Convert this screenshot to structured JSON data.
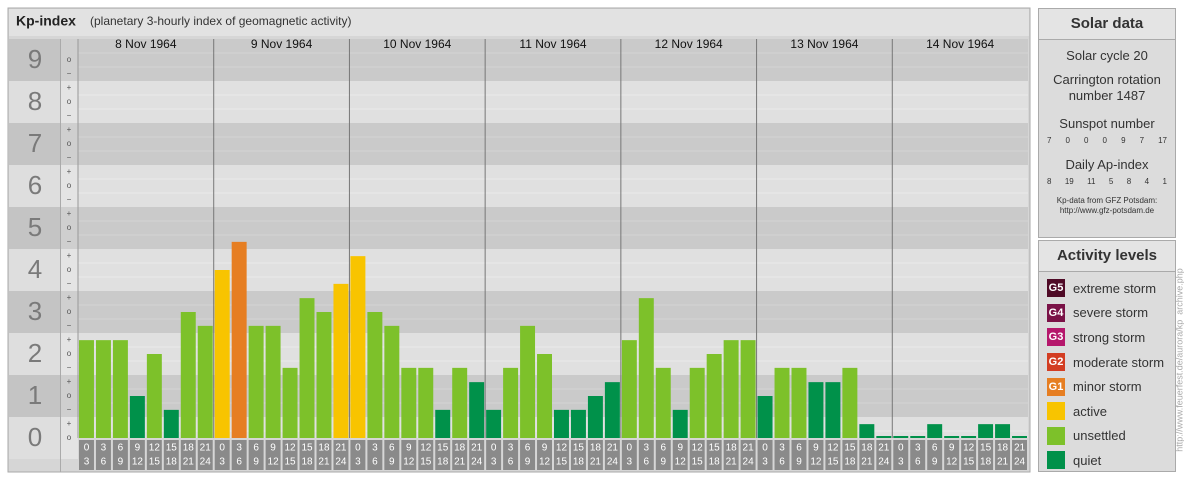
{
  "chart_data": {
    "type": "bar",
    "title": "Kp-index",
    "subtitle": "(planetary 3-hourly index of geomagnetic activity)",
    "ylim": [
      -0.5,
      9.5
    ],
    "yticks": [
      0,
      1,
      2,
      3,
      4,
      5,
      6,
      7,
      8,
      9
    ],
    "sublevels": [
      "−",
      "o",
      "+"
    ],
    "grid": true,
    "hours": [
      [
        0,
        3
      ],
      [
        3,
        6
      ],
      [
        6,
        9
      ],
      [
        9,
        12
      ],
      [
        12,
        15
      ],
      [
        15,
        18
      ],
      [
        18,
        21
      ],
      [
        21,
        24
      ]
    ],
    "days": [
      {
        "label": "8 Nov 1964",
        "values": [
          2.33,
          2.33,
          2.33,
          1,
          2,
          0.67,
          3,
          2.67
        ],
        "colors": [
          "#7dc12a",
          "#7dc12a",
          "#7dc12a",
          "#00914a",
          "#7dc12a",
          "#00914a",
          "#7dc12a",
          "#7dc12a"
        ]
      },
      {
        "label": "9 Nov 1964",
        "values": [
          4,
          4.67,
          2.67,
          2.67,
          1.67,
          3.33,
          3,
          3.67
        ],
        "colors": [
          "#f8c400",
          "#e67e22",
          "#7dc12a",
          "#7dc12a",
          "#7dc12a",
          "#7dc12a",
          "#7dc12a",
          "#f8c400"
        ]
      },
      {
        "label": "10 Nov 1964",
        "values": [
          4.33,
          3,
          2.67,
          1.67,
          1.67,
          0.67,
          1.67,
          1.33
        ],
        "colors": [
          "#f8c400",
          "#7dc12a",
          "#7dc12a",
          "#7dc12a",
          "#7dc12a",
          "#00914a",
          "#7dc12a",
          "#00914a"
        ]
      },
      {
        "label": "11 Nov 1964",
        "values": [
          0.67,
          1.67,
          2.67,
          2,
          0.67,
          0.67,
          1,
          1.33
        ],
        "colors": [
          "#00914a",
          "#7dc12a",
          "#7dc12a",
          "#7dc12a",
          "#00914a",
          "#00914a",
          "#00914a",
          "#00914a"
        ]
      },
      {
        "label": "12 Nov 1964",
        "values": [
          2.33,
          3.33,
          1.67,
          0.67,
          1.67,
          2,
          2.33,
          2.33
        ],
        "colors": [
          "#7dc12a",
          "#7dc12a",
          "#7dc12a",
          "#00914a",
          "#7dc12a",
          "#7dc12a",
          "#7dc12a",
          "#7dc12a"
        ]
      },
      {
        "label": "13 Nov 1964",
        "values": [
          1,
          1.67,
          1.67,
          1.33,
          1.33,
          1.67,
          0.33,
          0
        ],
        "colors": [
          "#00914a",
          "#7dc12a",
          "#7dc12a",
          "#00914a",
          "#00914a",
          "#7dc12a",
          "#00914a",
          "#00914a"
        ]
      },
      {
        "label": "14 Nov 1964",
        "values": [
          0,
          0,
          0.33,
          0,
          0,
          0.33,
          0.33,
          0
        ],
        "colors": [
          "#00914a",
          "#00914a",
          "#00914a",
          "#00914a",
          "#00914a",
          "#00914a",
          "#00914a",
          "#00914a"
        ]
      }
    ]
  },
  "solar": {
    "title": "Solar data",
    "cycle": "Solar cycle 20",
    "carrington": "Carrington rotation number 1487",
    "sunspot_label": "Sunspot number",
    "sunspots": [
      7,
      0,
      0,
      0,
      9,
      7,
      17
    ],
    "ap_label": "Daily Ap-index",
    "ap": [
      8,
      19,
      11,
      5,
      8,
      4,
      1
    ],
    "source": "Kp-data from GFZ Potsdam:",
    "url": "http://www.gfz-potsdam.de"
  },
  "activity": {
    "title": "Activity levels",
    "levels": [
      {
        "badge": "G5",
        "name": "extreme storm",
        "color": "#4f0a26"
      },
      {
        "badge": "G4",
        "name": "severe storm",
        "color": "#7a1247"
      },
      {
        "badge": "G3",
        "name": "strong storm",
        "color": "#b5176c"
      },
      {
        "badge": "G2",
        "name": "moderate storm",
        "color": "#d33d22"
      },
      {
        "badge": "G1",
        "name": "minor storm",
        "color": "#e67e22"
      },
      {
        "name": "active",
        "color": "#f8c400"
      },
      {
        "name": "unsettled",
        "color": "#7dc12a"
      },
      {
        "name": "quiet",
        "color": "#00914a"
      }
    ]
  },
  "side_url": "http://www.feuerfest.de/aurora/kp_archive.php"
}
